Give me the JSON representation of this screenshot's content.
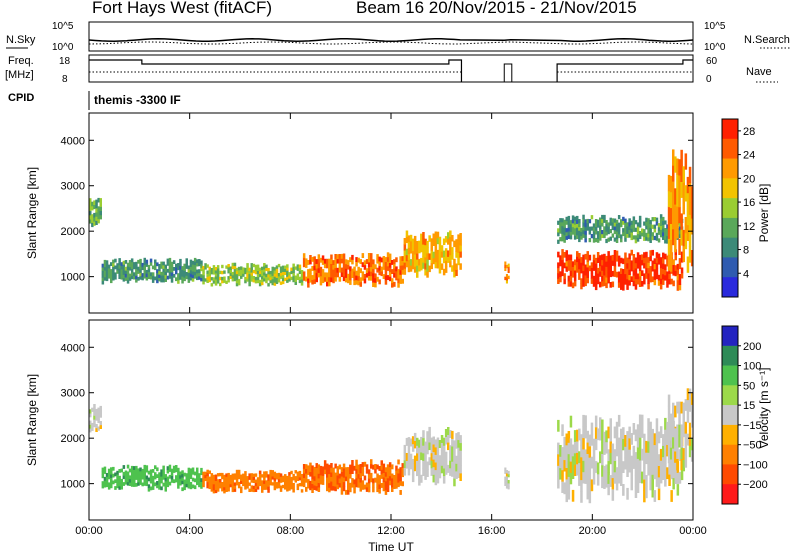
{
  "header": {
    "radar_title": "Fort Hays West (fitACF)",
    "beam_date": "Beam 16  20/Nov/2015 - 21/Nov/2015"
  },
  "strips": {
    "nsky_label": "N.Sky",
    "nsearch_label": "N.Search",
    "freq_label_1": "Freq.",
    "freq_label_2": "[MHz]",
    "nave_label": "Nave",
    "cpid_label": "CPID",
    "cpid_value": "themis -3300 IF",
    "nsky_ticks": [
      "10^5",
      "10^0"
    ],
    "nsearch_ticks": [
      "10^5",
      "10^0"
    ],
    "freq_ticks": [
      "18",
      "8"
    ],
    "nave_ticks": [
      "60",
      "0"
    ]
  },
  "colors": {
    "power_scale": [
      "#2a2adc",
      "#2f5bb0",
      "#3c8a78",
      "#5aa85a",
      "#9acd32",
      "#f2c300",
      "#ff9a00",
      "#ff5a00",
      "#ff2000"
    ],
    "velocity_scale": [
      "#2424c0",
      "#2e8b57",
      "#4ec24e",
      "#9cd94a",
      "#c8c8c8",
      "#ffb000",
      "#ff8000",
      "#ff4a00",
      "#ff1a1a"
    ]
  },
  "chart_data": [
    {
      "type": "heatmap",
      "panel": "power",
      "ylabel": "Slant Range [km]",
      "xlabel": "",
      "yticks": [
        1000,
        2000,
        3000,
        4000
      ],
      "ylim": [
        200,
        4600
      ],
      "xticks": [
        "00:00",
        "04:00",
        "08:00",
        "12:00",
        "16:00",
        "20:00",
        "00:00"
      ],
      "xlim_hours": [
        0,
        24
      ],
      "colorbar": {
        "label": "Power [dB]",
        "ticks": [
          4,
          8,
          12,
          16,
          20,
          24,
          28
        ],
        "range": [
          0,
          30
        ]
      },
      "echo_bands": [
        {
          "t_start": 0.0,
          "t_end": 0.5,
          "range_low": 2150,
          "range_high": 2700,
          "level": 12
        },
        {
          "t_start": 0.5,
          "t_end": 4.5,
          "range_low": 900,
          "range_high": 1350,
          "level": 10
        },
        {
          "t_start": 4.5,
          "t_end": 8.5,
          "range_low": 850,
          "range_high": 1250,
          "level": 14
        },
        {
          "t_start": 8.5,
          "t_end": 12.5,
          "range_low": 850,
          "range_high": 1450,
          "level": 24
        },
        {
          "t_start": 12.5,
          "t_end": 14.8,
          "range_low": 1100,
          "range_high": 1900,
          "level": 20
        },
        {
          "t_start": 16.5,
          "t_end": 16.7,
          "range_low": 900,
          "range_high": 1300,
          "level": 22
        },
        {
          "t_start": 18.6,
          "t_end": 23.6,
          "range_low": 800,
          "range_high": 1500,
          "level": 27
        },
        {
          "t_start": 18.6,
          "t_end": 23.6,
          "range_low": 1800,
          "range_high": 2300,
          "level": 10
        },
        {
          "t_start": 23.0,
          "t_end": 24.0,
          "range_low": 1400,
          "range_high": 3500,
          "level": 22
        }
      ]
    },
    {
      "type": "heatmap",
      "panel": "velocity",
      "ylabel": "Slant Range [km]",
      "xlabel": "Time UT",
      "yticks": [
        1000,
        2000,
        3000,
        4000
      ],
      "ylim": [
        200,
        4600
      ],
      "xticks": [
        "00:00",
        "04:00",
        "08:00",
        "12:00",
        "16:00",
        "20:00",
        "00:00"
      ],
      "xlim_hours": [
        0,
        24
      ],
      "colorbar": {
        "label": "Velocity [m s⁻¹]",
        "ticks": [
          200,
          100,
          50,
          15,
          -15,
          -50,
          -100,
          -200
        ],
        "range": [
          -250,
          250
        ]
      },
      "echo_bands": [
        {
          "t_start": 0.0,
          "t_end": 0.5,
          "range_low": 2200,
          "range_high": 2700,
          "level": 0
        },
        {
          "t_start": 0.5,
          "t_end": 4.5,
          "range_low": 900,
          "range_high": 1350,
          "level": 60
        },
        {
          "t_start": 4.5,
          "t_end": 8.5,
          "range_low": 850,
          "range_high": 1250,
          "level": -60
        },
        {
          "t_start": 8.5,
          "t_end": 12.5,
          "range_low": 850,
          "range_high": 1450,
          "level": -70
        },
        {
          "t_start": 12.5,
          "t_end": 14.8,
          "range_low": 1100,
          "range_high": 2100,
          "level": 0
        },
        {
          "t_start": 16.5,
          "t_end": 16.7,
          "range_low": 900,
          "range_high": 1300,
          "level": 0
        },
        {
          "t_start": 18.6,
          "t_end": 23.6,
          "range_low": 800,
          "range_high": 2300,
          "level": 0
        },
        {
          "t_start": 23.0,
          "t_end": 24.0,
          "range_low": 1400,
          "range_high": 2900,
          "level": 0
        }
      ]
    }
  ]
}
